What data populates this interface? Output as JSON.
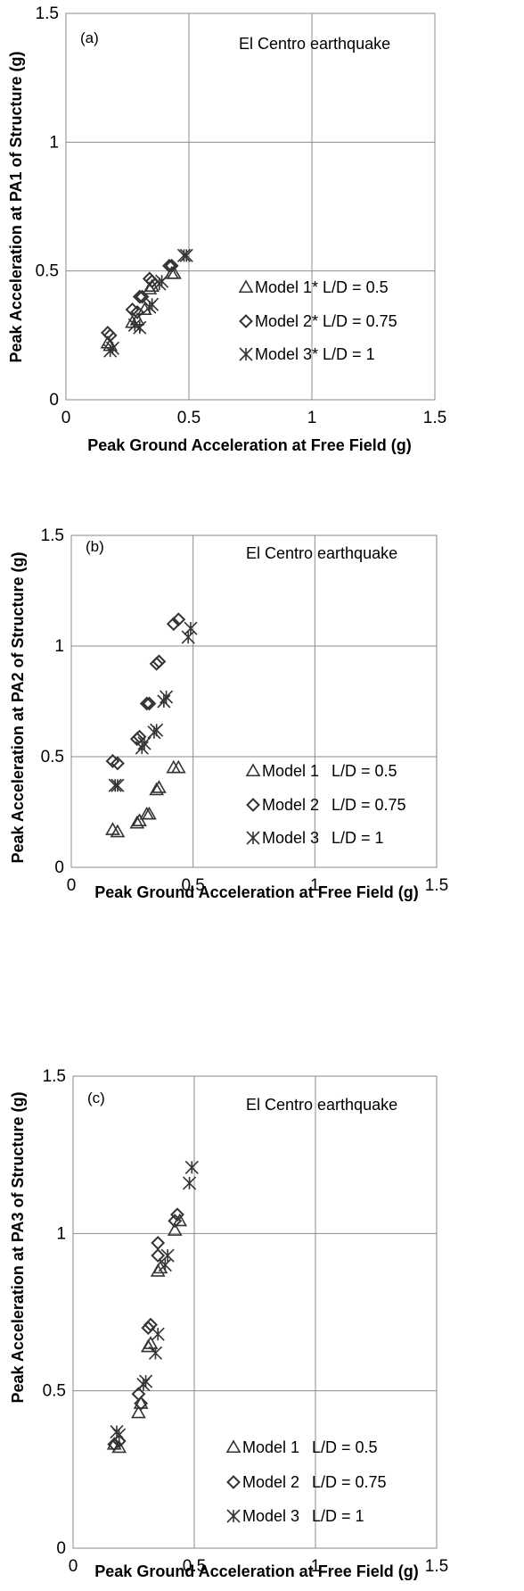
{
  "chart_data": [
    {
      "type": "scatter",
      "panel_label": "(a)",
      "annotation": "El Centro earthquake",
      "xlabel": "Peak Ground Acceleration at Free Field (g)",
      "ylabel": "Peak Acceleration at PA1 of Structure (g)",
      "xlim": [
        0,
        1.5
      ],
      "ylim": [
        0,
        1.5
      ],
      "x_ticks": [
        "0",
        "0.5",
        "1",
        "1.5"
      ],
      "y_ticks": [
        "0",
        "0.5",
        "1",
        "1.5"
      ],
      "grid": "major, both axes",
      "legend_position": "lower-right",
      "series": [
        {
          "name": "Model 1*",
          "ld": "L/D = 0.5",
          "marker": "triangle",
          "points": [
            [
              0.17,
              0.22
            ],
            [
              0.18,
              0.21
            ],
            [
              0.27,
              0.3
            ],
            [
              0.29,
              0.31
            ],
            [
              0.32,
              0.35
            ],
            [
              0.34,
              0.43
            ],
            [
              0.35,
              0.44
            ],
            [
              0.43,
              0.49
            ],
            [
              0.44,
              0.49
            ]
          ]
        },
        {
          "name": "Model 2*",
          "ld": "L/D = 0.75",
          "marker": "diamond",
          "points": [
            [
              0.17,
              0.26
            ],
            [
              0.18,
              0.25
            ],
            [
              0.27,
              0.35
            ],
            [
              0.29,
              0.34
            ],
            [
              0.3,
              0.4
            ],
            [
              0.31,
              0.4
            ],
            [
              0.34,
              0.47
            ],
            [
              0.35,
              0.46
            ],
            [
              0.42,
              0.52
            ],
            [
              0.43,
              0.52
            ]
          ]
        },
        {
          "name": "Model 3*",
          "ld": "L/D = 1",
          "marker": "asterisk",
          "points": [
            [
              0.18,
              0.19
            ],
            [
              0.19,
              0.2
            ],
            [
              0.28,
              0.29
            ],
            [
              0.3,
              0.28
            ],
            [
              0.34,
              0.36
            ],
            [
              0.35,
              0.37
            ],
            [
              0.38,
              0.45
            ],
            [
              0.39,
              0.46
            ],
            [
              0.48,
              0.56
            ],
            [
              0.49,
              0.56
            ]
          ]
        }
      ]
    },
    {
      "type": "scatter",
      "panel_label": "(b)",
      "annotation": "El Centro earthquake",
      "xlabel": "Peak Ground Acceleration at Free Field (g)",
      "ylabel": "Peak Acceleration at PA2 of Structure (g)",
      "xlim": [
        0,
        1.5
      ],
      "ylim": [
        0,
        1.5
      ],
      "x_ticks": [
        "0",
        "0.5",
        "1",
        "1.5"
      ],
      "y_ticks": [
        "0",
        "0.5",
        "1",
        "1.5"
      ],
      "grid": "major, both axes",
      "legend_position": "lower-right",
      "series": [
        {
          "name": "Model 1",
          "ld": "L/D = 0.5",
          "marker": "triangle",
          "points": [
            [
              0.17,
              0.17
            ],
            [
              0.19,
              0.16
            ],
            [
              0.27,
              0.2
            ],
            [
              0.28,
              0.21
            ],
            [
              0.31,
              0.24
            ],
            [
              0.32,
              0.24
            ],
            [
              0.35,
              0.35
            ],
            [
              0.36,
              0.36
            ],
            [
              0.42,
              0.45
            ],
            [
              0.44,
              0.45
            ]
          ]
        },
        {
          "name": "Model 2",
          "ld": "L/D = 0.75",
          "marker": "diamond",
          "points": [
            [
              0.17,
              0.48
            ],
            [
              0.19,
              0.47
            ],
            [
              0.27,
              0.58
            ],
            [
              0.28,
              0.59
            ],
            [
              0.31,
              0.74
            ],
            [
              0.32,
              0.74
            ],
            [
              0.35,
              0.92
            ],
            [
              0.36,
              0.93
            ],
            [
              0.42,
              1.1
            ],
            [
              0.44,
              1.12
            ]
          ]
        },
        {
          "name": "Model 3",
          "ld": "L/D = 1",
          "marker": "asterisk",
          "points": [
            [
              0.18,
              0.37
            ],
            [
              0.19,
              0.37
            ],
            [
              0.29,
              0.54
            ],
            [
              0.3,
              0.56
            ],
            [
              0.34,
              0.61
            ],
            [
              0.35,
              0.62
            ],
            [
              0.38,
              0.75
            ],
            [
              0.39,
              0.77
            ],
            [
              0.48,
              1.04
            ],
            [
              0.49,
              1.08
            ]
          ]
        }
      ]
    },
    {
      "type": "scatter",
      "panel_label": "(c)",
      "annotation": "El Centro earthquake",
      "xlabel": "Peak Ground Acceleration at Free Field (g)",
      "ylabel": "Peak Acceleration at PA3 of Structure (g)",
      "xlim": [
        0,
        1.5
      ],
      "ylim": [
        0,
        1.5
      ],
      "x_ticks": [
        "0",
        "0.5",
        "1",
        "1.5"
      ],
      "y_ticks": [
        "0",
        "0.5",
        "1",
        "1.5"
      ],
      "grid": "major, both axes",
      "legend_position": "lower-right",
      "series": [
        {
          "name": "Model 1",
          "ld": "L/D = 0.5",
          "marker": "triangle",
          "points": [
            [
              0.17,
              0.33
            ],
            [
              0.19,
              0.32
            ],
            [
              0.27,
              0.43
            ],
            [
              0.28,
              0.46
            ],
            [
              0.31,
              0.64
            ],
            [
              0.32,
              0.65
            ],
            [
              0.35,
              0.88
            ],
            [
              0.36,
              0.89
            ],
            [
              0.42,
              1.01
            ],
            [
              0.44,
              1.04
            ]
          ]
        },
        {
          "name": "Model 2",
          "ld": "L/D = 0.75",
          "marker": "diamond",
          "points": [
            [
              0.17,
              0.33
            ],
            [
              0.19,
              0.34
            ],
            [
              0.27,
              0.49
            ],
            [
              0.28,
              0.46
            ],
            [
              0.31,
              0.7
            ],
            [
              0.32,
              0.71
            ],
            [
              0.35,
              0.93
            ],
            [
              0.35,
              0.97
            ],
            [
              0.42,
              1.04
            ],
            [
              0.43,
              1.06
            ]
          ]
        },
        {
          "name": "Model 3",
          "ld": "L/D = 1",
          "marker": "asterisk",
          "points": [
            [
              0.18,
              0.37
            ],
            [
              0.19,
              0.36
            ],
            [
              0.29,
              0.52
            ],
            [
              0.3,
              0.53
            ],
            [
              0.34,
              0.62
            ],
            [
              0.35,
              0.68
            ],
            [
              0.38,
              0.9
            ],
            [
              0.39,
              0.93
            ],
            [
              0.48,
              1.16
            ],
            [
              0.49,
              1.21
            ]
          ]
        }
      ]
    }
  ]
}
